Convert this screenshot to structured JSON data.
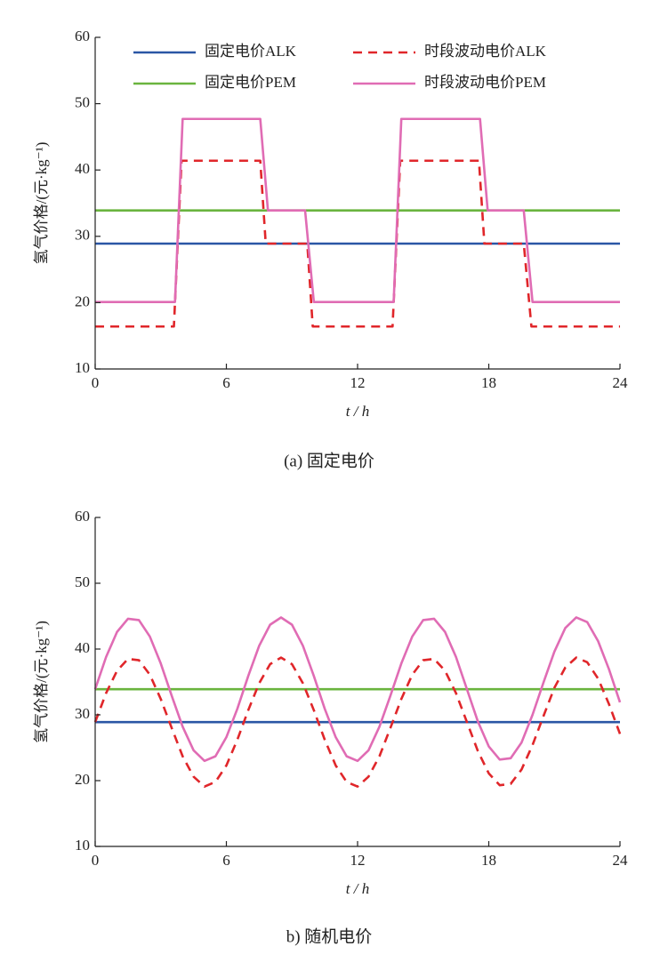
{
  "chart_data": [
    {
      "type": "line",
      "caption": "(a) 固定电价",
      "x_label": "t / h",
      "y_label": "氢气价格/(元·kg⁻¹)",
      "xlim": [
        0,
        24
      ],
      "xticks": [
        0,
        6,
        12,
        18,
        24
      ],
      "ylim": [
        10,
        60
      ],
      "yticks": [
        10,
        20,
        30,
        40,
        50,
        60
      ],
      "legend": "top",
      "series": [
        {
          "name": "固定电价ALK",
          "color": "#2a56a5",
          "line_style": "solid",
          "x": [
            0,
            24
          ],
          "values": [
            28.9,
            28.9
          ]
        },
        {
          "name": "时段波动电价ALK",
          "color": "#e0262a",
          "line_style": "dashed",
          "x": [
            0,
            3.6,
            3.95,
            7.55,
            7.8,
            9.7,
            9.95,
            13.6,
            13.95,
            17.55,
            17.8,
            19.6,
            19.95,
            24
          ],
          "values": [
            16.4,
            16.4,
            41.4,
            41.4,
            28.9,
            28.9,
            16.4,
            16.4,
            41.4,
            41.4,
            28.9,
            28.9,
            16.4,
            16.4
          ]
        },
        {
          "name": "固定电价PEM",
          "color": "#6ab43e",
          "line_style": "solid",
          "x": [
            0,
            24
          ],
          "values": [
            33.9,
            33.9
          ]
        },
        {
          "name": "时段波动电价PEM",
          "color": "#e06cb4",
          "line_style": "solid",
          "x": [
            0,
            3.65,
            4.0,
            7.55,
            7.9,
            9.6,
            10.0,
            13.65,
            14.0,
            17.6,
            17.95,
            19.6,
            20.0,
            24
          ],
          "values": [
            20.1,
            20.1,
            47.7,
            47.7,
            33.9,
            33.9,
            20.1,
            20.1,
            47.7,
            47.7,
            33.9,
            33.9,
            20.1,
            20.1
          ]
        }
      ]
    },
    {
      "type": "line",
      "caption": "b) 随机电价",
      "x_label": "t / h",
      "y_label": "氢气价格/(元·kg⁻¹)",
      "xlim": [
        0,
        24
      ],
      "xticks": [
        0,
        6,
        12,
        18,
        24
      ],
      "ylim": [
        10,
        60
      ],
      "yticks": [
        10,
        20,
        30,
        40,
        50,
        60
      ],
      "series": [
        {
          "color": "#2a56a5",
          "line_style": "solid",
          "x": [
            0,
            24
          ],
          "values": [
            28.9,
            28.9
          ]
        },
        {
          "color": "#6ab43e",
          "line_style": "solid",
          "x": [
            0,
            24
          ],
          "values": [
            33.9,
            33.9
          ]
        },
        {
          "color": "#e0262a",
          "line_style": "dashed",
          "x": [
            0,
            0.5,
            1,
            1.5,
            2,
            2.5,
            3,
            3.5,
            4,
            4.5,
            5,
            5.5,
            6,
            6.5,
            7,
            7.5,
            8,
            8.5,
            9,
            9.5,
            10,
            10.5,
            11,
            11.5,
            12,
            12.5,
            13,
            13.5,
            14,
            14.5,
            15,
            15.5,
            16,
            16.5,
            17,
            17.5,
            18,
            18.5,
            19,
            19.5,
            20,
            20.5,
            21,
            21.5,
            22,
            22.5,
            23,
            23.5,
            24
          ],
          "values": [
            28.9,
            33.3,
            36.7,
            38.5,
            38.3,
            36.1,
            32.4,
            28.0,
            23.7,
            20.6,
            19.1,
            19.8,
            22.3,
            26.2,
            30.7,
            34.8,
            37.7,
            38.7,
            37.7,
            34.8,
            30.7,
            26.2,
            22.3,
            19.8,
            19.1,
            20.6,
            23.7,
            28.0,
            32.4,
            36.1,
            38.3,
            38.5,
            36.7,
            33.3,
            28.9,
            24.5,
            21.1,
            19.3,
            19.5,
            21.7,
            25.4,
            29.8,
            34.1,
            37.2,
            38.7,
            38.0,
            35.5,
            31.6,
            27.1
          ]
        },
        {
          "color": "#e06cb4",
          "line_style": "solid",
          "x": [
            0,
            0.5,
            1,
            1.5,
            2,
            2.5,
            3,
            3.5,
            4,
            4.5,
            5,
            5.5,
            6,
            6.5,
            7,
            7.5,
            8,
            8.5,
            9,
            9.5,
            10,
            10.5,
            11,
            11.5,
            12,
            12.5,
            13,
            13.5,
            14,
            14.5,
            15,
            15.5,
            16,
            16.5,
            17,
            17.5,
            18,
            18.5,
            19,
            19.5,
            20,
            20.5,
            21,
            21.5,
            22,
            22.5,
            23,
            23.5,
            24
          ],
          "values": [
            33.9,
            38.8,
            42.6,
            44.6,
            44.4,
            41.9,
            37.8,
            32.9,
            28.2,
            24.6,
            23.0,
            23.7,
            26.6,
            30.9,
            35.9,
            40.5,
            43.7,
            44.8,
            43.7,
            40.5,
            35.9,
            30.9,
            26.6,
            23.7,
            23.0,
            24.6,
            28.2,
            32.9,
            37.8,
            41.9,
            44.4,
            44.6,
            42.6,
            38.8,
            33.9,
            29.0,
            25.2,
            23.2,
            23.4,
            25.8,
            30.0,
            34.9,
            39.6,
            43.2,
            44.8,
            44.1,
            41.2,
            36.9,
            31.9
          ]
        }
      ]
    }
  ]
}
